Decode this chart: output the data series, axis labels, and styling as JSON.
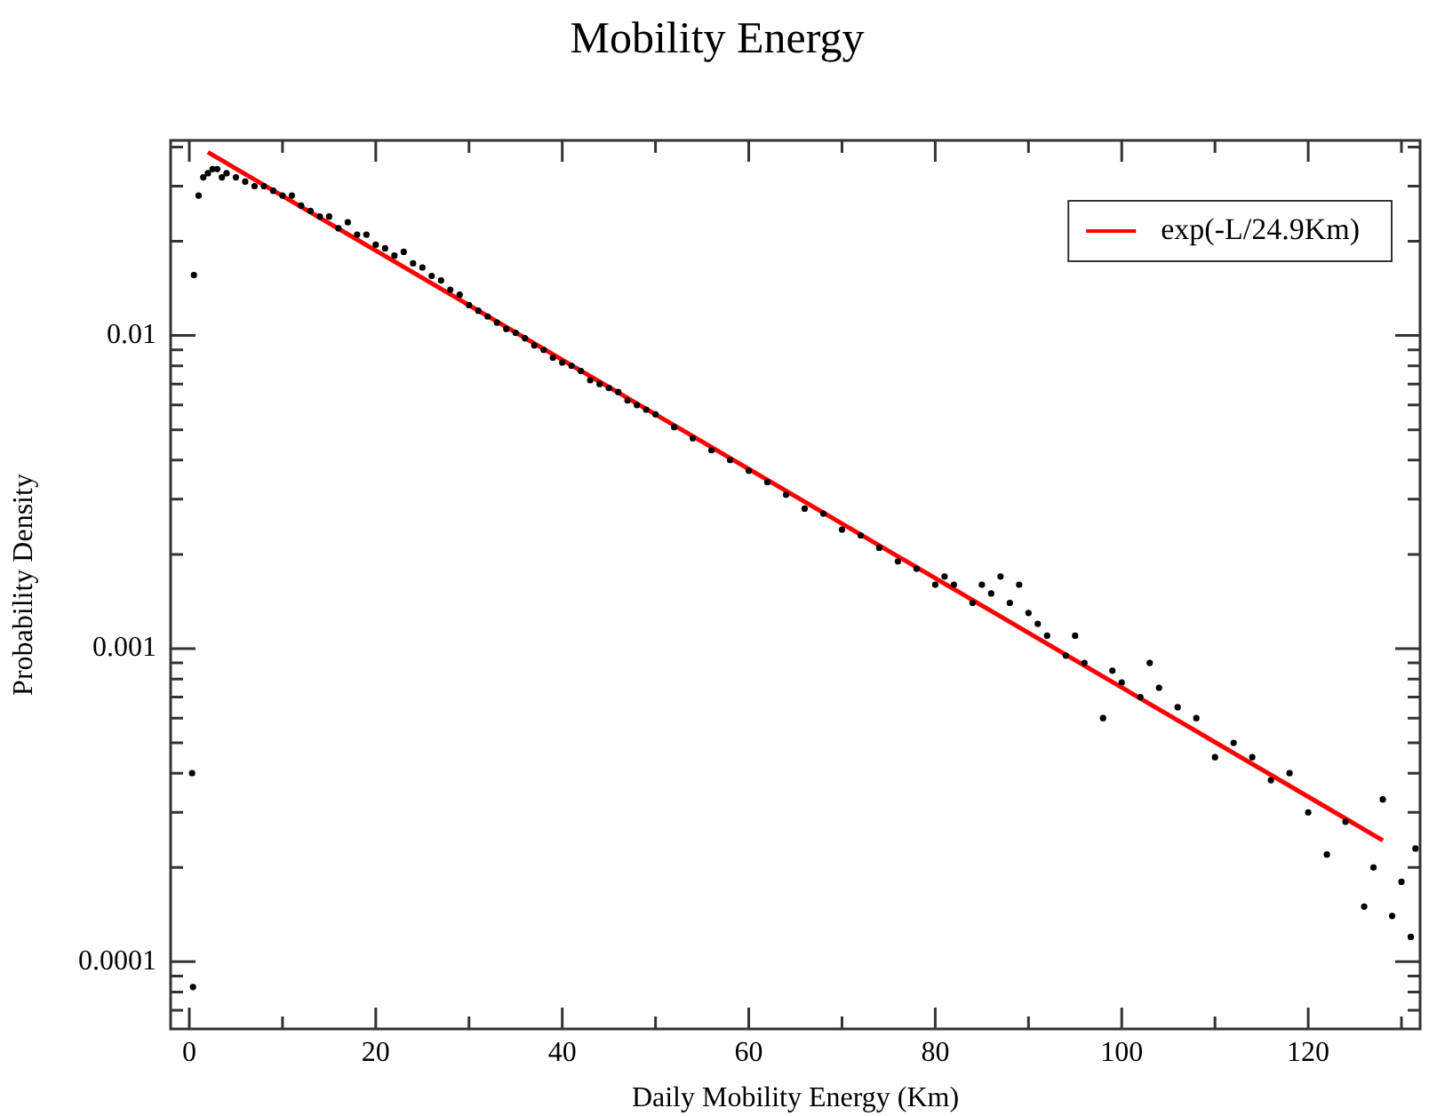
{
  "chart_data": {
    "type": "scatter",
    "title": "Mobility Energy",
    "xlabel": "Daily Mobility Energy (Km)",
    "ylabel": "Probability Density",
    "log": "y",
    "legend": "top right",
    "xlim": [
      -2,
      132
    ],
    "xticks": [
      0,
      {
        "value": 10,
        "label": null
      },
      20,
      {
        "value": 30,
        "label": null
      },
      40,
      {
        "value": 50,
        "label": null
      },
      60,
      {
        "value": 70,
        "label": null
      },
      80,
      {
        "value": 90,
        "label": null
      },
      100,
      {
        "value": 110,
        "label": null
      },
      120,
      {
        "value": 130,
        "label": null
      }
    ],
    "ylim": [
      6.1e-05,
      0.042
    ],
    "yticks": [
      {
        "value": 7e-05,
        "label": null
      },
      {
        "value": 8e-05,
        "label": null
      },
      {
        "value": 9e-05,
        "label": null
      },
      0.0001,
      {
        "value": 0.0002,
        "label": null
      },
      {
        "value": 0.0003,
        "label": null
      },
      {
        "value": 0.0004,
        "label": null
      },
      {
        "value": 0.0005,
        "label": null
      },
      {
        "value": 0.0006,
        "label": null
      },
      {
        "value": 0.0007,
        "label": null
      },
      {
        "value": 0.0008,
        "label": null
      },
      {
        "value": 0.0009,
        "label": null
      },
      0.001,
      {
        "value": 0.002,
        "label": null
      },
      {
        "value": 0.003,
        "label": null
      },
      {
        "value": 0.004,
        "label": null
      },
      {
        "value": 0.005,
        "label": null
      },
      {
        "value": 0.006,
        "label": null
      },
      {
        "value": 0.007,
        "label": null
      },
      {
        "value": 0.008,
        "label": null
      },
      {
        "value": 0.009,
        "label": null
      },
      0.01,
      {
        "value": 0.02,
        "label": null
      },
      {
        "value": 0.03,
        "label": null
      },
      {
        "value": 0.04,
        "label": null
      }
    ],
    "series": [
      {
        "marker": "circle",
        "color": "#000000",
        "x": [
          0.3,
          0.4,
          0.5,
          1,
          1.5,
          2,
          2.5,
          3,
          3.5,
          4,
          5,
          6,
          7,
          8,
          9,
          10,
          11,
          12,
          13,
          14,
          15,
          16,
          17,
          18,
          19,
          20,
          21,
          22,
          23,
          24,
          25,
          26,
          27,
          28,
          29,
          30,
          31,
          32,
          33,
          34,
          35,
          36,
          37,
          38,
          39,
          40,
          41,
          42,
          43,
          44,
          45,
          46,
          47,
          48,
          49,
          50,
          52,
          54,
          56,
          58,
          60,
          62,
          64,
          66,
          68,
          70,
          72,
          74,
          76,
          78,
          80,
          81,
          82,
          84,
          85,
          86,
          87,
          88,
          89,
          90,
          91,
          92,
          94,
          95,
          96,
          98,
          99,
          100,
          102,
          103,
          104,
          106,
          108,
          110,
          112,
          114,
          116,
          118,
          120,
          122,
          124,
          126,
          127,
          128,
          129,
          130,
          131,
          131.5
        ],
        "values": [
          0.0004,
          8.3e-05,
          0.0156,
          0.028,
          0.032,
          0.033,
          0.034,
          0.034,
          0.032,
          0.033,
          0.032,
          0.031,
          0.03,
          0.03,
          0.029,
          0.028,
          0.028,
          0.026,
          0.025,
          0.024,
          0.024,
          0.022,
          0.023,
          0.021,
          0.021,
          0.0195,
          0.019,
          0.018,
          0.0185,
          0.017,
          0.0165,
          0.0155,
          0.015,
          0.014,
          0.0135,
          0.0125,
          0.012,
          0.0115,
          0.011,
          0.0105,
          0.0102,
          0.0098,
          0.0093,
          0.009,
          0.0085,
          0.0082,
          0.008,
          0.0077,
          0.0072,
          0.007,
          0.0068,
          0.0066,
          0.0062,
          0.006,
          0.0058,
          0.0056,
          0.0051,
          0.0047,
          0.0043,
          0.004,
          0.0037,
          0.0034,
          0.0031,
          0.0028,
          0.0027,
          0.0024,
          0.0023,
          0.0021,
          0.0019,
          0.0018,
          0.0016,
          0.0017,
          0.0016,
          0.0014,
          0.0016,
          0.0015,
          0.0017,
          0.0014,
          0.0016,
          0.0013,
          0.0012,
          0.0011,
          0.00095,
          0.0011,
          0.0009,
          0.0006,
          0.00085,
          0.00078,
          0.0007,
          0.0009,
          0.00075,
          0.00065,
          0.0006,
          0.00045,
          0.0005,
          0.00045,
          0.00038,
          0.0004,
          0.0003,
          0.00022,
          0.00028,
          0.00015,
          0.0002,
          0.00033,
          0.00014,
          0.00018,
          0.00012,
          0.00023
        ]
      },
      {
        "type": "line",
        "marker": "none",
        "name": "exp(-L/24.9Km)",
        "color": "#ff0000",
        "x": [
          2,
          128
        ],
        "values": [
          0.0385,
          0.000244
        ]
      }
    ]
  }
}
